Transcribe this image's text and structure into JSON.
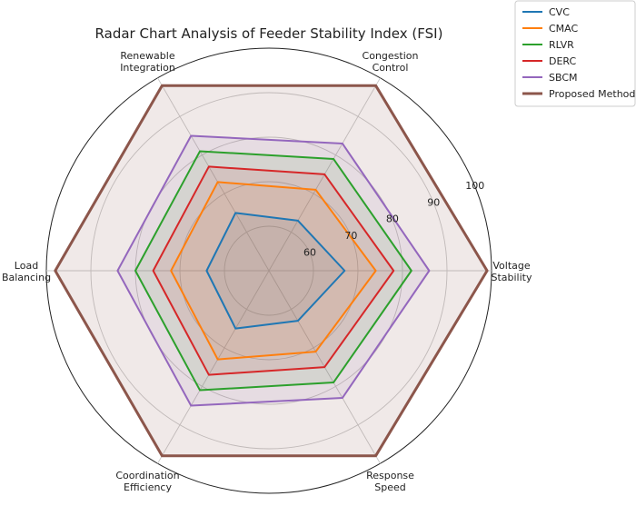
{
  "chart_data": {
    "type": "radar",
    "title": "Radar Chart Analysis of Feeder Stability Index (FSI)",
    "axes": [
      [
        "Voltage",
        "Stability"
      ],
      [
        "Congestion",
        "Control"
      ],
      [
        "Renewable",
        "Integration"
      ],
      [
        "Load",
        "Balancing"
      ],
      [
        "Coordination",
        "Efficiency"
      ],
      [
        "Response",
        "Speed"
      ]
    ],
    "categories": [
      "Voltage Stability",
      "Congestion Control",
      "Renewable Integration",
      "Load Balancing",
      "Coordination Efficiency",
      "Response Speed"
    ],
    "r_ticks": [
      60,
      70,
      80,
      90,
      100
    ],
    "r_range": [
      50,
      100
    ],
    "grid": true,
    "legend_position": "top-right",
    "series": [
      {
        "name": "CVC",
        "color": "#1f77b4",
        "values": [
          67,
          63,
          65,
          64,
          65,
          63
        ]
      },
      {
        "name": "CMAC",
        "color": "#ff7f0e",
        "values": [
          74,
          71,
          73,
          72,
          73,
          71
        ]
      },
      {
        "name": "RLVR",
        "color": "#2ca02c",
        "values": [
          82,
          79,
          81,
          80,
          81,
          79
        ]
      },
      {
        "name": "DERC",
        "color": "#d62728",
        "values": [
          78,
          75,
          77,
          76,
          77,
          75
        ]
      },
      {
        "name": "SBCM",
        "color": "#9467bd",
        "values": [
          86,
          83,
          85,
          84,
          85,
          83
        ]
      },
      {
        "name": "Proposed Method",
        "color": "#8c564b",
        "values": [
          99,
          98,
          98,
          98,
          98,
          98
        ],
        "fill": true
      }
    ]
  }
}
